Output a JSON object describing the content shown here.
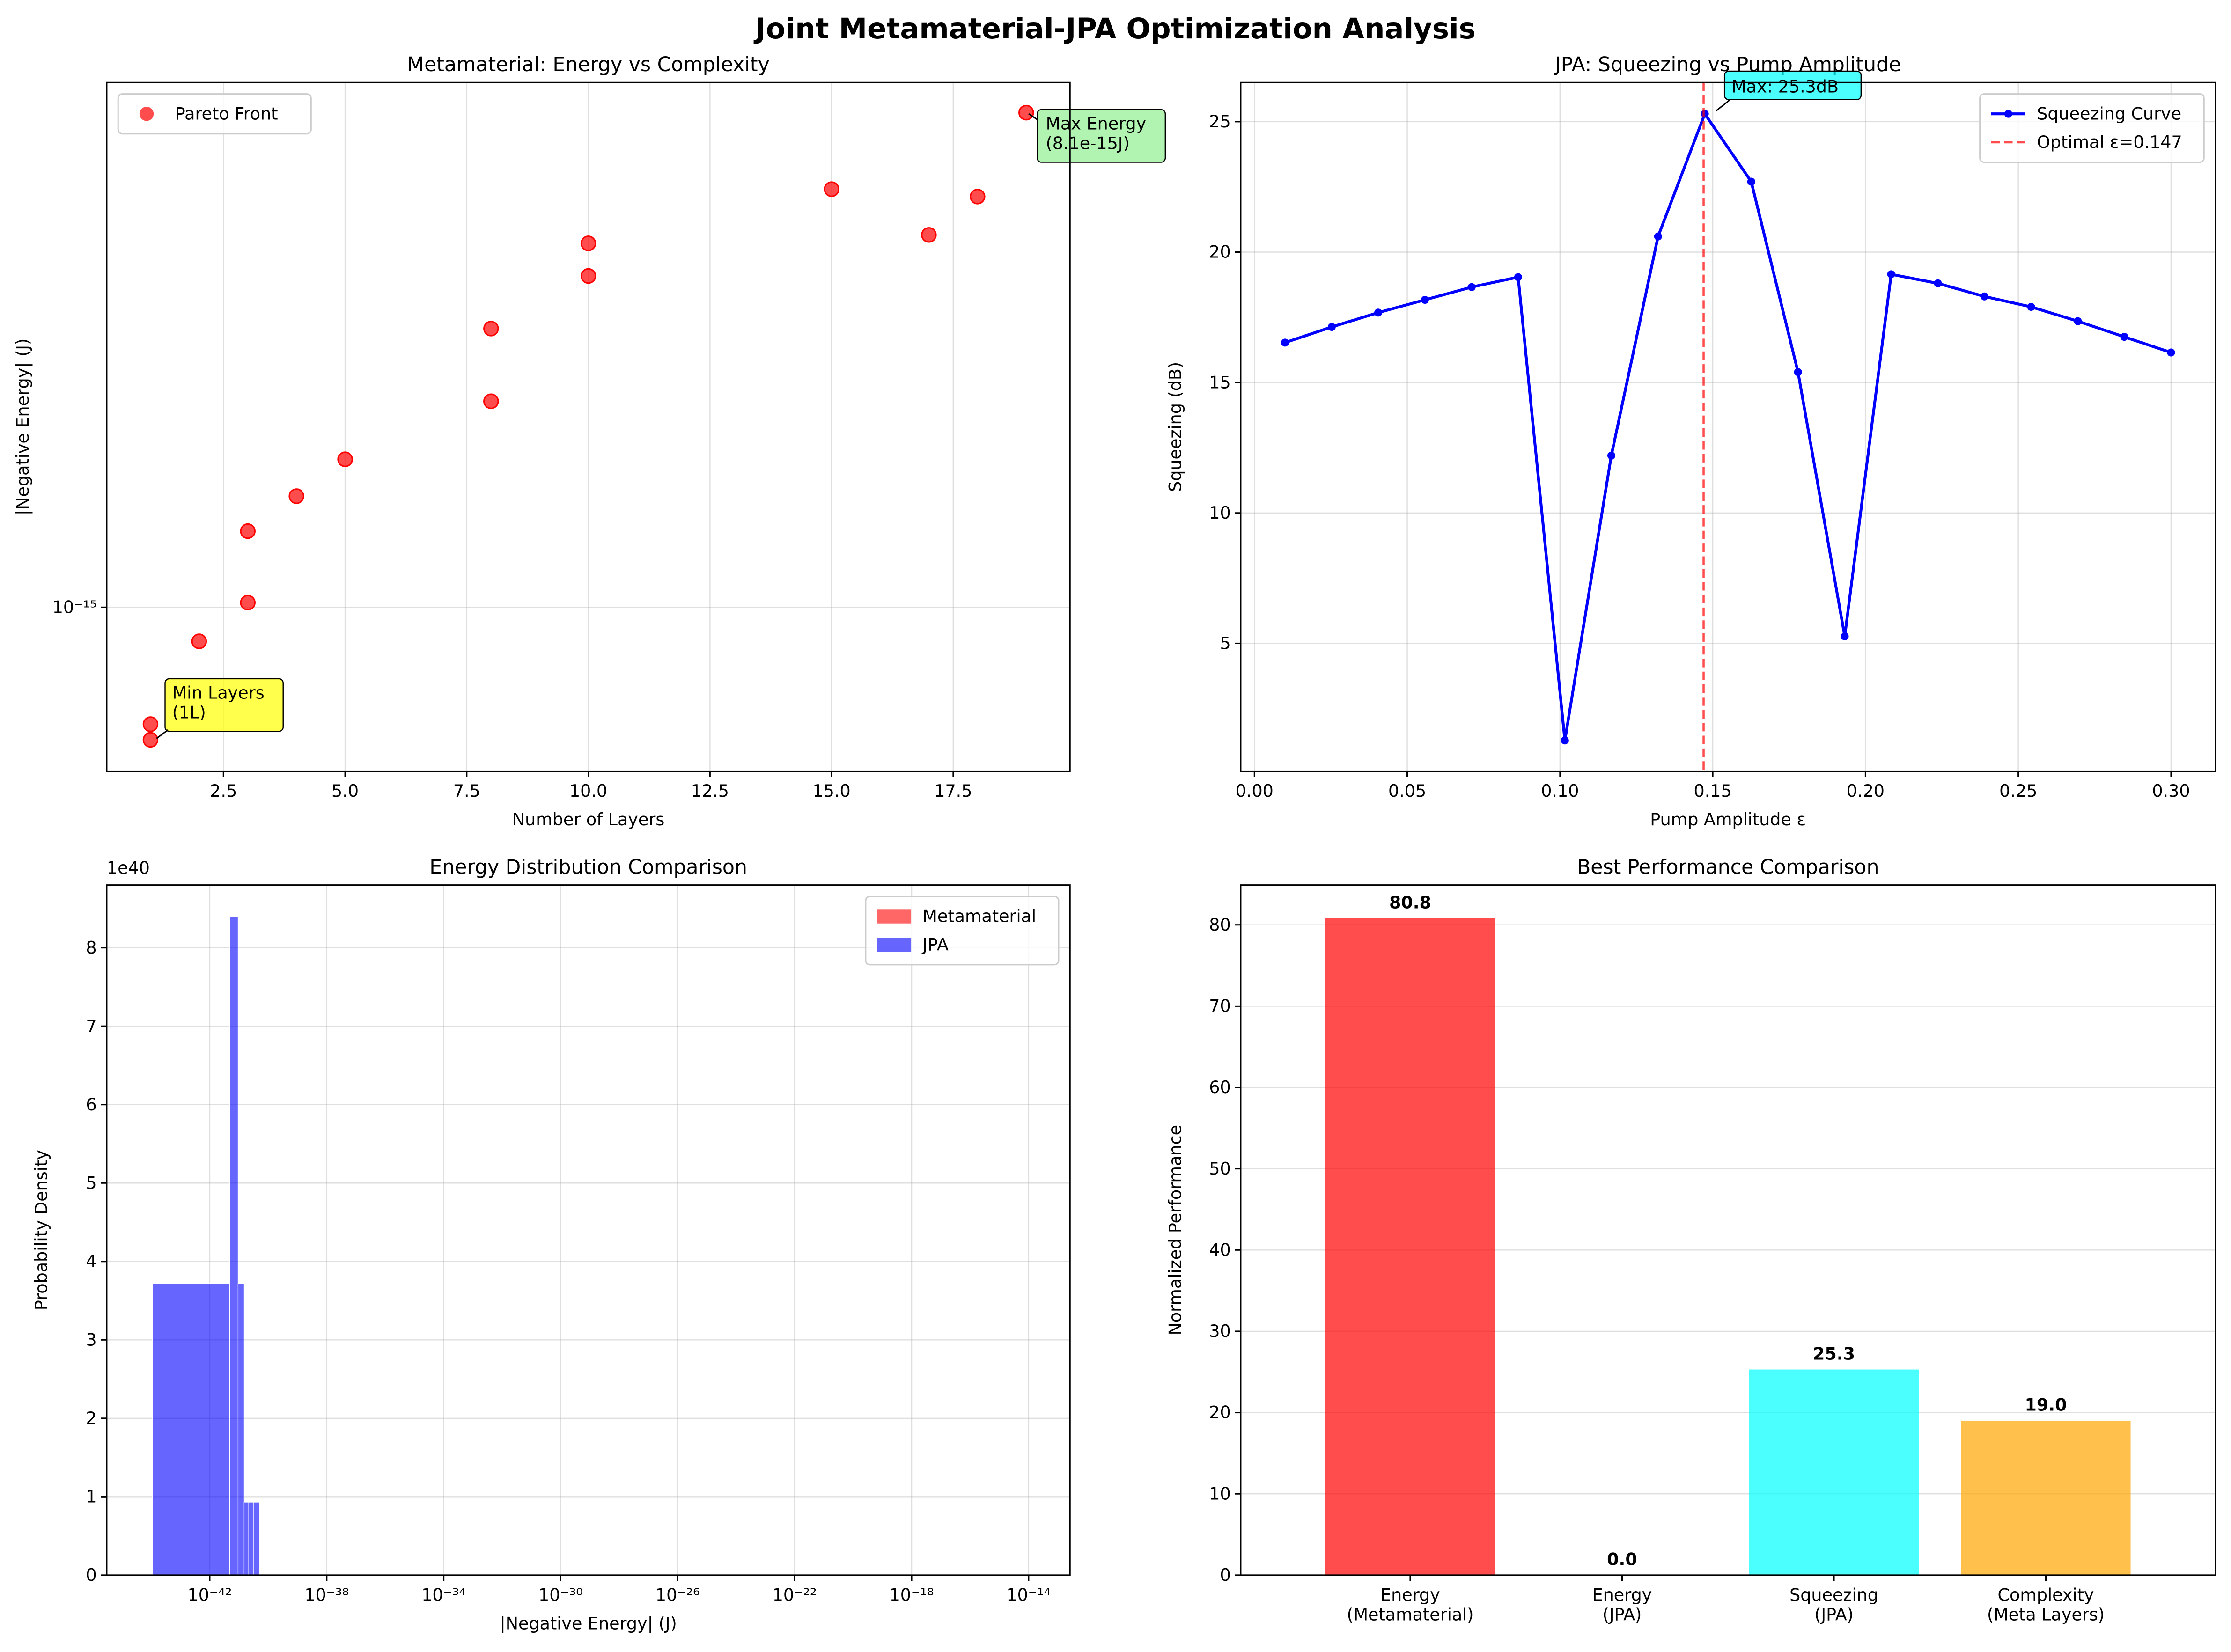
{
  "title": "Joint Metamaterial-JPA Optimization Analysis",
  "chart_data": [
    {
      "type": "scatter",
      "title": "Metamaterial: Energy vs Complexity",
      "xlabel": "Number of Layers",
      "ylabel": "|Negative Energy| (J)",
      "x": [
        1,
        1,
        2,
        3,
        3,
        4,
        5,
        8,
        8,
        10,
        10,
        15,
        17,
        18,
        19
      ],
      "series": [
        {
          "name": "Pareto Front",
          "color": "#ff0000",
          "values": [
            5.71e-16,
            6.1e-16,
            8.66e-16,
            1.02e-15,
            1.38e-15,
            1.6e-15,
            1.87e-15,
            2.39e-15,
            3.25e-15,
            4.06e-15,
            4.66e-15,
            5.86e-15,
            4.83e-15,
            5.68e-15,
            8.1e-15
          ]
        }
      ],
      "xlim": [
        0.1,
        19.9
      ],
      "xticks": [
        2.5,
        {
          "value": 5,
          "label": "5.0"
        },
        7.5,
        {
          "value": 10,
          "label": "10.0"
        },
        12.5,
        {
          "value": 15,
          "label": "15.0"
        },
        17.5
      ],
      "ylim": [
        5e-16,
        9.2e-15
      ],
      "ylog": true,
      "yticks": [
        {
          "value": 1e-15,
          "label": "10⁻¹⁵"
        }
      ],
      "grid": "both",
      "legend": "upper left",
      "annotations": [
        "Max Energy\n(8.1e-15J)",
        "Min Layers\n(1L)"
      ]
    },
    {
      "type": "line",
      "title": "JPA: Squeezing vs Pump Amplitude",
      "xlabel": "Pump Amplitude ε",
      "ylabel": "Squeezing (dB)",
      "x": [
        0.01,
        0.0253,
        0.0405,
        0.0558,
        0.0711,
        0.0863,
        0.1016,
        0.1168,
        0.1321,
        0.1474,
        0.1626,
        0.1779,
        0.1932,
        0.2084,
        0.2237,
        0.2389,
        0.2542,
        0.2695,
        0.2847,
        0.3
      ],
      "series": [
        {
          "name": "Squeezing Curve",
          "color": "#0000ff",
          "values": [
            16.53,
            17.13,
            17.68,
            18.17,
            18.66,
            19.04,
            1.28,
            12.2,
            20.6,
            25.3,
            22.7,
            15.4,
            5.27,
            19.15,
            18.8,
            18.3,
            17.9,
            17.35,
            16.75,
            16.15
          ]
        }
      ],
      "vline": {
        "name": "Optimal ε=0.147",
        "x": 0.147,
        "color": "#ff0000"
      },
      "xlim": [
        -0.0045,
        0.3145
      ],
      "xticks": [
        {
          "value": 0,
          "label": "0.00"
        },
        0.05,
        {
          "value": 0.1,
          "label": "0.10"
        },
        0.15,
        {
          "value": 0.2,
          "label": "0.20"
        },
        0.25,
        {
          "value": 0.3,
          "label": "0.30"
        }
      ],
      "ylim": [
        0.1,
        26.5
      ],
      "yticks": [
        5,
        10,
        15,
        20,
        25
      ],
      "grid": "both",
      "legend": "upper right",
      "annotations": [
        "Max: 25.3dB"
      ]
    },
    {
      "type": "histogram",
      "title": "Energy Distribution Comparison",
      "xlabel": "|Negative Energy| (J)",
      "ylabel": "Probability Density",
      "y_offset_label": "1e40",
      "series": [
        {
          "name": "Metamaterial",
          "color": "#ff0000",
          "bins": [
            5.7e-16,
            8.1e-15
          ],
          "values": [
            0
          ]
        },
        {
          "name": "JPA",
          "color": "#0000ff",
          "bins": [
            1.1e-44,
            4.8e-42,
            9.3e-42,
            1.5e-41,
            2.05e-41,
            3.2e-41,
            5e-41
          ],
          "values": [
            3.72,
            8.4,
            3.72,
            0.93,
            0.93,
            0.93
          ]
        }
      ],
      "xlim": [
        3e-46,
        2.6e-13
      ],
      "xlog": true,
      "xticks": [
        {
          "value": 1e-42,
          "label": "10⁻⁴²"
        },
        {
          "value": 1e-38,
          "label": "10⁻³⁸"
        },
        {
          "value": 1e-34,
          "label": "10⁻³⁴"
        },
        {
          "value": 1e-30,
          "label": "10⁻³⁰"
        },
        {
          "value": 1e-26,
          "label": "10⁻²⁶"
        },
        {
          "value": 1e-22,
          "label": "10⁻²²"
        },
        {
          "value": 1e-18,
          "label": "10⁻¹⁸"
        },
        {
          "value": 1e-14,
          "label": "10⁻¹⁴"
        }
      ],
      "ylim": [
        0,
        8.8
      ],
      "yticks": [
        0,
        1,
        2,
        3,
        4,
        5,
        6,
        7,
        8
      ],
      "grid": "both",
      "legend": "upper right"
    },
    {
      "type": "bar",
      "title": "Best Performance Comparison",
      "ylabel": "Normalized Performance",
      "categories": [
        "Energy\n(Metamaterial)",
        "Energy\n(JPA)",
        "Squeezing\n(JPA)",
        "Complexity\n(Meta Layers)"
      ],
      "values": [
        80.8,
        0.0,
        25.3,
        19.0
      ],
      "value_labels": [
        "80.8",
        "0.0",
        "25.3",
        "19.0"
      ],
      "colors": [
        "#ff0000",
        "#0000ff",
        "#00ffff",
        "#ffa500"
      ],
      "ylim": [
        0,
        84.9
      ],
      "yticks": [
        0,
        10,
        20,
        30,
        40,
        50,
        60,
        70,
        80
      ],
      "grid": "y"
    }
  ]
}
